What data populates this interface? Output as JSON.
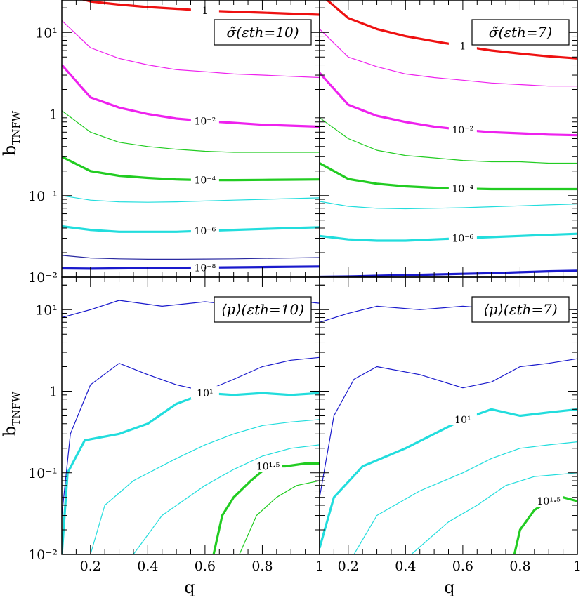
{
  "figure": {
    "ytitle": "b",
    "ytitle_sub": "TNFW",
    "xtitle": "q"
  },
  "chart_data": [
    {
      "type": "line",
      "panel": "top-left",
      "legend": "σ̃(εth=10)",
      "x_range": [
        0.1,
        1.0
      ],
      "y_range": [
        0.01,
        25
      ],
      "y_scale": "log",
      "xticks": [
        "0.2",
        "0.4",
        "0.6",
        "0.8",
        "1"
      ],
      "yticks": [
        "10⁻²",
        "10⁻¹",
        "1",
        "10¹"
      ],
      "x": [
        0.1,
        0.2,
        0.3,
        0.4,
        0.5,
        0.6,
        0.7,
        0.8,
        0.9,
        1.0
      ],
      "series": [
        {
          "level": "10^-8",
          "color": "#1a1acc",
          "bold": true,
          "label": "10⁻⁸",
          "values": [
            0.0128,
            0.0127,
            0.0128,
            0.0129,
            0.013,
            0.0131,
            0.0132,
            0.0133,
            0.0134,
            0.0135
          ]
        },
        {
          "level": "10^-7",
          "color": "#2a2aa0",
          "bold": false,
          "values": [
            0.0185,
            0.0172,
            0.0168,
            0.0166,
            0.0166,
            0.0167,
            0.0168,
            0.017,
            0.0172,
            0.0174
          ]
        },
        {
          "level": "10^-6",
          "color": "#22dddd",
          "bold": true,
          "label": "10⁻⁶",
          "values": [
            0.042,
            0.038,
            0.036,
            0.036,
            0.036,
            0.037,
            0.038,
            0.039,
            0.04,
            0.041
          ]
        },
        {
          "level": "10^-5",
          "color": "#22dddd",
          "bold": false,
          "values": [
            0.1,
            0.088,
            0.084,
            0.083,
            0.084,
            0.086,
            0.088,
            0.09,
            0.092,
            0.094
          ]
        },
        {
          "level": "10^-4",
          "color": "#22cc22",
          "bold": true,
          "label": "10⁻⁴",
          "values": [
            0.3,
            0.2,
            0.175,
            0.165,
            0.158,
            0.155,
            0.155,
            0.156,
            0.157,
            0.158
          ]
        },
        {
          "level": "10^-3",
          "color": "#22cc22",
          "bold": false,
          "values": [
            1.1,
            0.6,
            0.45,
            0.4,
            0.37,
            0.35,
            0.34,
            0.34,
            0.34,
            0.34
          ]
        },
        {
          "level": "10^-2",
          "color": "#ee22ee",
          "bold": true,
          "label": "10⁻²",
          "values": [
            4.0,
            1.6,
            1.2,
            1.0,
            0.88,
            0.82,
            0.78,
            0.74,
            0.72,
            0.7
          ]
        },
        {
          "level": "10^-1",
          "color": "#ee22ee",
          "bold": false,
          "values": [
            14.0,
            6.5,
            4.8,
            4.0,
            3.5,
            3.3,
            3.1,
            3.0,
            2.9,
            2.8
          ]
        },
        {
          "level": "1",
          "color": "#ee1111",
          "bold": true,
          "label": "1",
          "values": [
            30.0,
            24.0,
            22.0,
            20.5,
            19.5,
            18.5,
            18.0,
            17.5,
            17.0,
            16.5
          ]
        }
      ]
    },
    {
      "type": "line",
      "panel": "top-right",
      "legend": "σ̃(εth=7)",
      "x_range": [
        0.1,
        1.0
      ],
      "y_range": [
        0.01,
        25
      ],
      "y_scale": "log",
      "xticks": [
        "0.2",
        "0.4",
        "0.6",
        "0.8",
        "1"
      ],
      "yticks": [
        "10⁻²",
        "10⁻¹",
        "1",
        "10¹"
      ],
      "x": [
        0.1,
        0.2,
        0.3,
        0.4,
        0.5,
        0.6,
        0.7,
        0.8,
        0.9,
        1.0
      ],
      "series": [
        {
          "level": "10^-7",
          "color": "#1a1acc",
          "bold": true,
          "values": [
            0.0101,
            0.0102,
            0.0104,
            0.0106,
            0.0108,
            0.011,
            0.0112,
            0.0115,
            0.0118,
            0.012
          ]
        },
        {
          "level": "10^-6",
          "color": "#22dddd",
          "bold": true,
          "label": "10⁻⁶",
          "values": [
            0.032,
            0.029,
            0.028,
            0.028,
            0.029,
            0.03,
            0.031,
            0.032,
            0.033,
            0.034
          ]
        },
        {
          "level": "10^-5",
          "color": "#22dddd",
          "bold": false,
          "values": [
            0.085,
            0.074,
            0.07,
            0.069,
            0.07,
            0.071,
            0.073,
            0.075,
            0.077,
            0.079
          ]
        },
        {
          "level": "10^-4",
          "color": "#22cc22",
          "bold": true,
          "label": "10⁻⁴",
          "values": [
            0.25,
            0.16,
            0.14,
            0.13,
            0.125,
            0.122,
            0.12,
            0.12,
            0.12,
            0.12
          ]
        },
        {
          "level": "10^-3",
          "color": "#22cc22",
          "bold": false,
          "values": [
            0.9,
            0.5,
            0.36,
            0.31,
            0.29,
            0.27,
            0.26,
            0.26,
            0.25,
            0.25
          ]
        },
        {
          "level": "10^-2",
          "color": "#ee22ee",
          "bold": true,
          "label": "10⁻²",
          "values": [
            3.2,
            1.3,
            0.95,
            0.8,
            0.7,
            0.64,
            0.6,
            0.58,
            0.56,
            0.55
          ]
        },
        {
          "level": "10^-1",
          "color": "#ee22ee",
          "bold": false,
          "values": [
            11.0,
            5.0,
            3.8,
            3.1,
            2.8,
            2.6,
            2.4,
            2.3,
            2.2,
            2.2
          ]
        },
        {
          "level": "1",
          "color": "#ee1111",
          "bold": true,
          "label": "1",
          "values": [
            30.0,
            15.0,
            11.0,
            9.0,
            7.8,
            6.8,
            6.0,
            5.5,
            5.1,
            4.8
          ]
        }
      ]
    },
    {
      "type": "line",
      "panel": "bottom-left",
      "legend": "⟨μ⟩(εth=10)",
      "x_range": [
        0.1,
        1.0
      ],
      "y_range": [
        0.01,
        25
      ],
      "y_scale": "log",
      "xticks": [
        "0.2",
        "0.4",
        "0.6",
        "0.8",
        "1"
      ],
      "yticks": [
        "10⁻²",
        "10⁻¹",
        "1",
        "10¹"
      ],
      "series": [
        {
          "level": "10^0.5 upper",
          "color": "#1a1acc",
          "bold": false,
          "points": [
            [
              0.1,
              8.0
            ],
            [
              0.2,
              10.0
            ],
            [
              0.3,
              13.0
            ],
            [
              0.45,
              11.0
            ],
            [
              0.6,
              12.5
            ],
            [
              0.75,
              11.0
            ],
            [
              0.9,
              13.0
            ],
            [
              1.0,
              12.0
            ]
          ]
        },
        {
          "level": "10^0.5",
          "color": "#1a1acc",
          "bold": false,
          "points": [
            [
              0.1,
              0.03
            ],
            [
              0.13,
              0.3
            ],
            [
              0.2,
              1.2
            ],
            [
              0.3,
              2.2
            ],
            [
              0.4,
              1.6
            ],
            [
              0.5,
              1.2
            ],
            [
              0.6,
              1.0
            ],
            [
              0.7,
              1.4
            ],
            [
              0.8,
              2.0
            ],
            [
              0.9,
              2.4
            ],
            [
              1.0,
              2.6
            ]
          ]
        },
        {
          "level": "10^1",
          "color": "#22dddd",
          "bold": true,
          "label": "10¹",
          "points": [
            [
              0.1,
              0.01
            ],
            [
              0.12,
              0.1
            ],
            [
              0.18,
              0.25
            ],
            [
              0.3,
              0.3
            ],
            [
              0.4,
              0.4
            ],
            [
              0.5,
              0.7
            ],
            [
              0.6,
              0.95
            ],
            [
              0.7,
              0.9
            ],
            [
              0.8,
              0.95
            ],
            [
              0.9,
              0.9
            ],
            [
              1.0,
              0.95
            ]
          ]
        },
        {
          "level": "10^1.25 a",
          "color": "#22dddd",
          "bold": false,
          "points": [
            [
              0.2,
              0.01
            ],
            [
              0.25,
              0.04
            ],
            [
              0.35,
              0.08
            ],
            [
              0.5,
              0.15
            ],
            [
              0.6,
              0.22
            ],
            [
              0.7,
              0.3
            ],
            [
              0.8,
              0.38
            ],
            [
              0.9,
              0.42
            ],
            [
              1.0,
              0.45
            ]
          ]
        },
        {
          "level": "10^1.25 b",
          "color": "#22dddd",
          "bold": false,
          "points": [
            [
              0.35,
              0.01
            ],
            [
              0.45,
              0.03
            ],
            [
              0.6,
              0.07
            ],
            [
              0.7,
              0.11
            ],
            [
              0.8,
              0.16
            ],
            [
              0.9,
              0.2
            ],
            [
              1.0,
              0.22
            ]
          ]
        },
        {
          "level": "10^1.5",
          "color": "#22cc22",
          "bold": true,
          "label": "10¹·⁵",
          "points": [
            [
              0.63,
              0.01
            ],
            [
              0.66,
              0.03
            ],
            [
              0.7,
              0.05
            ],
            [
              0.76,
              0.08
            ],
            [
              0.82,
              0.12
            ],
            [
              0.88,
              0.12
            ],
            [
              0.95,
              0.13
            ],
            [
              1.0,
              0.13
            ]
          ]
        },
        {
          "level": "10^1.75",
          "color": "#22cc22",
          "bold": false,
          "points": [
            [
              0.72,
              0.01
            ],
            [
              0.78,
              0.03
            ],
            [
              0.85,
              0.05
            ],
            [
              0.92,
              0.07
            ],
            [
              1.0,
              0.08
            ]
          ]
        }
      ]
    },
    {
      "type": "line",
      "panel": "bottom-right",
      "legend": "⟨μ⟩(εth=7)",
      "x_range": [
        0.1,
        1.0
      ],
      "y_range": [
        0.01,
        25
      ],
      "y_scale": "log",
      "xticks": [
        "0.2",
        "0.4",
        "0.6",
        "0.8",
        "1"
      ],
      "yticks": [
        "10⁻²",
        "10⁻¹",
        "1",
        "10¹"
      ],
      "series": [
        {
          "level": "10^0.5 upper",
          "color": "#1a1acc",
          "bold": false,
          "points": [
            [
              0.1,
              7.0
            ],
            [
              0.2,
              9.0
            ],
            [
              0.3,
              11.0
            ],
            [
              0.45,
              10.0
            ],
            [
              0.6,
              11.0
            ],
            [
              0.75,
              10.0
            ],
            [
              0.9,
              10.5
            ],
            [
              1.0,
              10.0
            ]
          ]
        },
        {
          "level": "10^0.5",
          "color": "#1a1acc",
          "bold": false,
          "points": [
            [
              0.1,
              0.05
            ],
            [
              0.15,
              0.5
            ],
            [
              0.22,
              1.4
            ],
            [
              0.3,
              2.0
            ],
            [
              0.45,
              1.6
            ],
            [
              0.6,
              1.1
            ],
            [
              0.7,
              1.3
            ],
            [
              0.8,
              2.0
            ],
            [
              0.9,
              2.2
            ],
            [
              1.0,
              2.5
            ]
          ]
        },
        {
          "level": "10^1",
          "color": "#22dddd",
          "bold": true,
          "label": "10¹",
          "points": [
            [
              0.1,
              0.012
            ],
            [
              0.15,
              0.05
            ],
            [
              0.25,
              0.12
            ],
            [
              0.4,
              0.2
            ],
            [
              0.5,
              0.3
            ],
            [
              0.6,
              0.45
            ],
            [
              0.7,
              0.6
            ],
            [
              0.8,
              0.5
            ],
            [
              0.9,
              0.55
            ],
            [
              1.0,
              0.6
            ]
          ]
        },
        {
          "level": "10^1.25 a",
          "color": "#22dddd",
          "bold": false,
          "points": [
            [
              0.22,
              0.01
            ],
            [
              0.3,
              0.03
            ],
            [
              0.45,
              0.06
            ],
            [
              0.6,
              0.1
            ],
            [
              0.7,
              0.15
            ],
            [
              0.8,
              0.2
            ],
            [
              0.9,
              0.22
            ],
            [
              1.0,
              0.24
            ]
          ]
        },
        {
          "level": "10^1.25 b",
          "color": "#22dddd",
          "bold": false,
          "points": [
            [
              0.42,
              0.01
            ],
            [
              0.55,
              0.025
            ],
            [
              0.65,
              0.04
            ],
            [
              0.75,
              0.07
            ],
            [
              0.85,
              0.09
            ],
            [
              1.0,
              0.1
            ]
          ]
        },
        {
          "level": "10^1.5",
          "color": "#22cc22",
          "bold": true,
          "label": "10¹·⁵",
          "points": [
            [
              0.78,
              0.01
            ],
            [
              0.8,
              0.02
            ],
            [
              0.85,
              0.035
            ],
            [
              0.9,
              0.045
            ],
            [
              0.95,
              0.05
            ],
            [
              1.0,
              0.045
            ]
          ]
        }
      ]
    }
  ]
}
